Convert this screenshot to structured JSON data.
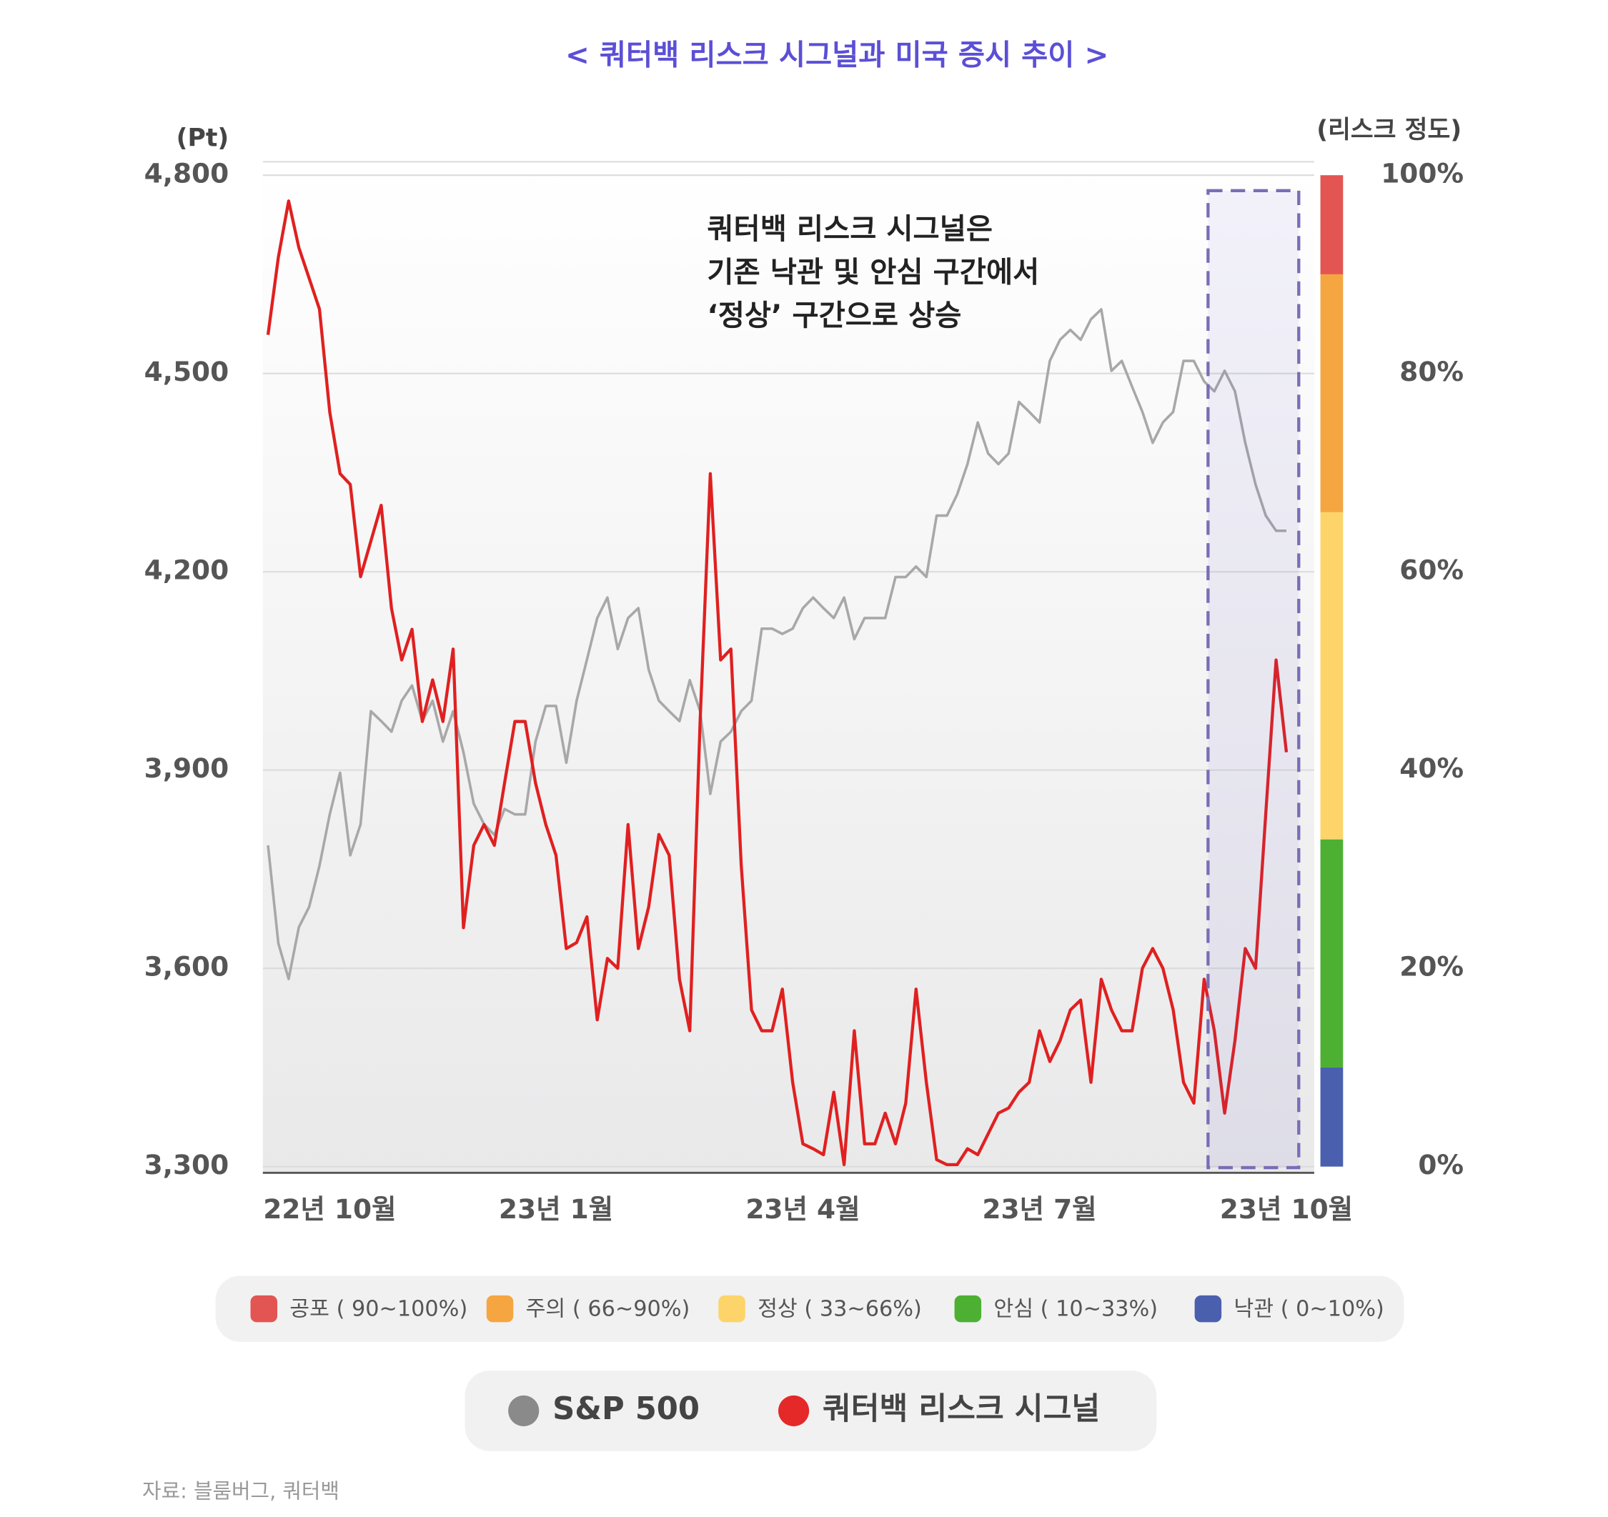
{
  "chart_data": {
    "type": "line",
    "title": "< 쿼터백 리스크 시그널과 미국 증시 추이 >",
    "y_label": "(Pt)",
    "y2_label": "(리스크 정도)",
    "annotation": [
      "쿼터백 리스크 시그널은",
      "기존 낙관 및 안심 구간에서",
      "‘정상’ 구간으로 상승"
    ],
    "source": "자료: 블룸버그, 쿼터백",
    "ylim": [
      3300,
      4800
    ],
    "yticks": [
      {
        "value": 3300,
        "label": "3,300"
      },
      {
        "value": 3600,
        "label": "3,600"
      },
      {
        "value": 3900,
        "label": "3,900"
      },
      {
        "value": 4200,
        "label": "4,200"
      },
      {
        "value": 4500,
        "label": "4,500"
      },
      {
        "value": 4800,
        "label": "4,800"
      }
    ],
    "y2lim": [
      0,
      100
    ],
    "y2ticks": [
      {
        "value": 0,
        "label": "0%"
      },
      {
        "value": 20,
        "label": "20%"
      },
      {
        "value": 40,
        "label": "40%"
      },
      {
        "value": 60,
        "label": "60%"
      },
      {
        "value": 80,
        "label": "80%"
      },
      {
        "value": 100,
        "label": "100%"
      }
    ],
    "xticks": [
      {
        "value": 6,
        "label": "22년  10월"
      },
      {
        "value": 28,
        "label": "23년 1월"
      },
      {
        "value": 52,
        "label": "23년  4월"
      },
      {
        "value": 75,
        "label": "23년 7월"
      },
      {
        "value": 99,
        "label": "23년 10월"
      }
    ],
    "risk_bands": [
      {
        "label": "공포 ( 90~100%)",
        "from": 90,
        "to": 100,
        "color": "#e35552"
      },
      {
        "label": "주의 ( 66~90%)",
        "from": 66,
        "to": 90,
        "color": "#f5a641"
      },
      {
        "label": "정상 ( 33~66%)",
        "from": 33,
        "to": 66,
        "color": "#fcd46a"
      },
      {
        "label": "안심 ( 10~33%)",
        "from": 10,
        "to": 33,
        "color": "#4db033"
      },
      {
        "label": "낙관 ( 0~10%)",
        "from": 0,
        "to": 10,
        "color": "#4a5fae"
      }
    ],
    "series": [
      {
        "name": "S&P 500",
        "color": "#a8a8a8",
        "values": [
          3786,
          3638,
          3584,
          3662,
          3693,
          3755,
          3833,
          3896,
          3771,
          3818,
          3989,
          3974,
          3958,
          4005,
          4028,
          3974,
          4005,
          3943,
          3989,
          3927,
          3849,
          3818,
          3802,
          3841,
          3833,
          3833,
          3943,
          3997,
          3997,
          3911,
          4005,
          4067,
          4130,
          4161,
          4083,
          4130,
          4145,
          4052,
          4005,
          3989,
          3974,
          4036,
          3989,
          3864,
          3943,
          3958,
          3989,
          4005,
          4114,
          4114,
          4106,
          4114,
          4145,
          4161,
          4145,
          4130,
          4161,
          4098,
          4130,
          4130,
          4130,
          4192,
          4192,
          4208,
          4192,
          4285,
          4285,
          4317,
          4363,
          4426,
          4379,
          4363,
          4379,
          4457,
          4442,
          4426,
          4519,
          4551,
          4566,
          4551,
          4582,
          4597,
          4504,
          4519,
          4480,
          4442,
          4395,
          4426,
          4442,
          4519,
          4519,
          4488,
          4473,
          4504,
          4473,
          4395,
          4332,
          4285,
          4262,
          4262
        ]
      },
      {
        "name": "쿼터백 리스크 시그널",
        "color": "#e02020",
        "axis": "y2",
        "values": [
          83.9,
          91.7,
          97.4,
          92.7,
          89.6,
          86.5,
          76.1,
          69.9,
          68.8,
          59.5,
          63.1,
          66.7,
          56.3,
          51.1,
          54.2,
          44.9,
          49.1,
          44.9,
          52.2,
          24.1,
          32.4,
          34.5,
          32.4,
          38.7,
          44.9,
          44.9,
          38.7,
          34.5,
          31.4,
          22.0,
          22.6,
          25.2,
          14.8,
          21.0,
          20.0,
          34.5,
          22.0,
          26.2,
          33.5,
          31.4,
          18.9,
          13.7,
          44.9,
          69.9,
          51.1,
          52.2,
          30.4,
          15.8,
          13.7,
          13.7,
          17.9,
          8.5,
          2.3,
          1.8,
          1.2,
          7.5,
          0.2,
          13.7,
          2.3,
          2.3,
          5.4,
          2.3,
          6.4,
          17.9,
          8.5,
          0.7,
          0.2,
          0.2,
          1.8,
          1.2,
          3.3,
          5.4,
          5.9,
          7.5,
          8.5,
          13.7,
          10.6,
          12.7,
          15.8,
          16.8,
          8.5,
          18.9,
          15.8,
          13.7,
          13.7,
          20.0,
          22.0,
          20.0,
          15.8,
          8.5,
          6.4,
          18.9,
          13.7,
          5.4,
          12.7,
          22.0,
          20.0,
          35.6,
          51.1,
          41.8
        ]
      }
    ]
  }
}
